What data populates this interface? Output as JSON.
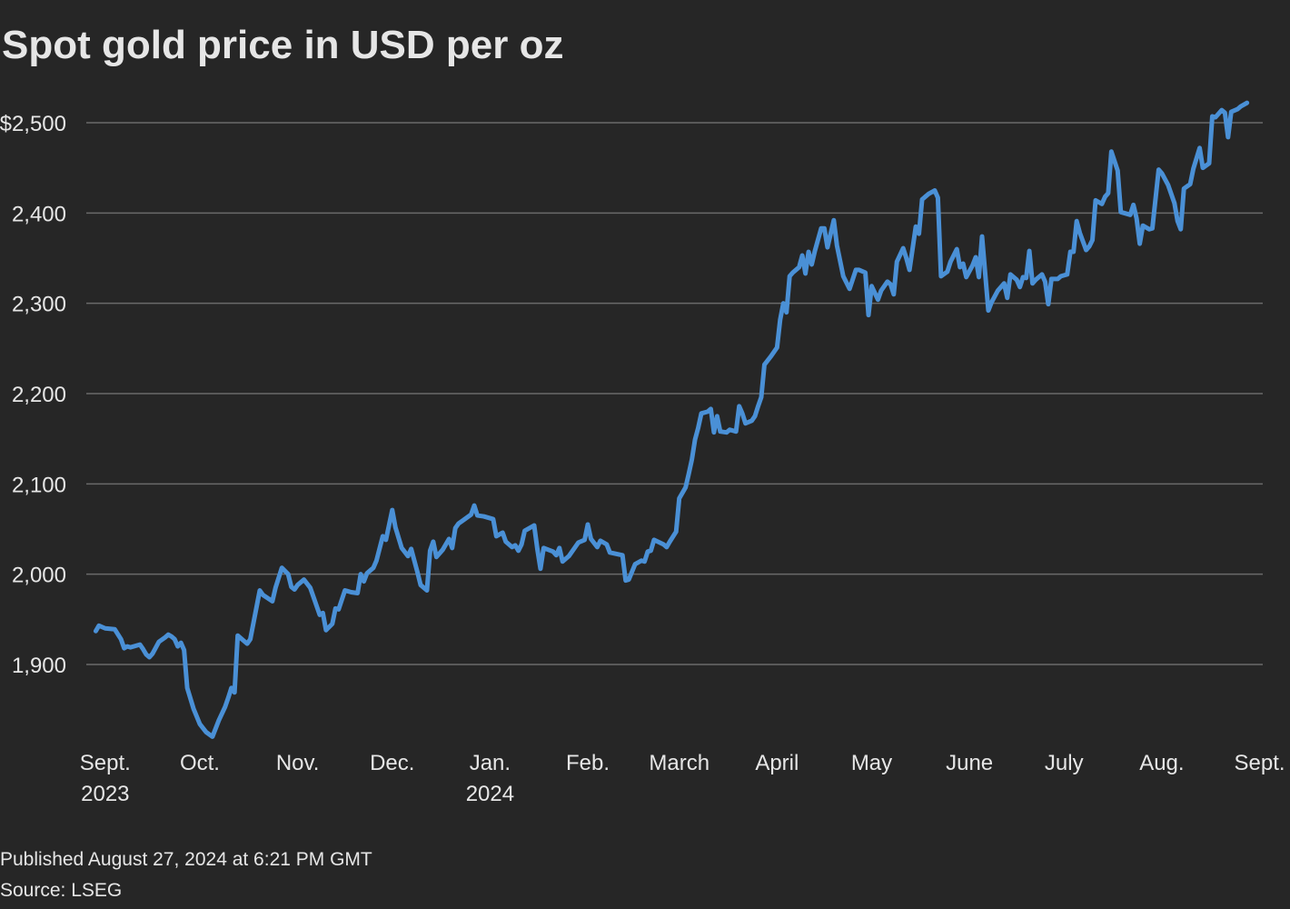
{
  "chart_data": {
    "type": "line",
    "title": "Spot gold price in USD per oz",
    "note": "Published August 27, 2024 at 6:21 PM GMT",
    "source": "Source: LSEG",
    "color": "#4a90d6",
    "grid": true,
    "xlim": [
      -6,
      367
    ],
    "ylim": [
      1815,
      2530
    ],
    "xticks": [
      {
        "value": 0,
        "label": "Sept.",
        "year": "2023"
      },
      {
        "value": 30,
        "label": "Oct."
      },
      {
        "value": 61,
        "label": "Nov."
      },
      {
        "value": 91,
        "label": "Dec."
      },
      {
        "value": 122,
        "label": "Jan.",
        "year": "2024"
      },
      {
        "value": 153,
        "label": "Feb."
      },
      {
        "value": 182,
        "label": "March"
      },
      {
        "value": 213,
        "label": "April"
      },
      {
        "value": 243,
        "label": "May"
      },
      {
        "value": 274,
        "label": "June"
      },
      {
        "value": 304,
        "label": "July"
      },
      {
        "value": 335,
        "label": "Aug."
      },
      {
        "value": 366,
        "label": "Sept."
      }
    ],
    "yticks": [
      {
        "value": 1900,
        "label": "1,900"
      },
      {
        "value": 2000,
        "label": "2,000"
      },
      {
        "value": 2100,
        "label": "2,100"
      },
      {
        "value": 2200,
        "label": "2,200"
      },
      {
        "value": 2300,
        "label": "2,300"
      },
      {
        "value": 2400,
        "label": "2,400"
      },
      {
        "value": 2500,
        "label": "$2,500"
      }
    ],
    "x": [
      -3,
      -2,
      0,
      3,
      5,
      6,
      7,
      8,
      11,
      12,
      13,
      14,
      15,
      17,
      19,
      20,
      21,
      22,
      23,
      24,
      25,
      26,
      28,
      30,
      32,
      34,
      36,
      38,
      39,
      40,
      41,
      42,
      45,
      46,
      49,
      50,
      53,
      54,
      56,
      58,
      59,
      60,
      61,
      63,
      65,
      66,
      68,
      69,
      70,
      72,
      73,
      74,
      76,
      78,
      80,
      81,
      82,
      83,
      85,
      86,
      88,
      89,
      91,
      92,
      94,
      96,
      97,
      99,
      100,
      102,
      103,
      104,
      105,
      107,
      109,
      110,
      111,
      112,
      114,
      116,
      117,
      118,
      120,
      123,
      124,
      126,
      127,
      129,
      130,
      131,
      132,
      133,
      136,
      137,
      138,
      139,
      142,
      143,
      144,
      145,
      147,
      150,
      152,
      153,
      154,
      156,
      157,
      159,
      160,
      164,
      165,
      166,
      168,
      170,
      171,
      172,
      173,
      174,
      177,
      178,
      179,
      181,
      182,
      184,
      185,
      186,
      187,
      188,
      189,
      191,
      192,
      193,
      194,
      195,
      197,
      198,
      200,
      201,
      202,
      203,
      205,
      206,
      207,
      208,
      209,
      211,
      213,
      214,
      215,
      216,
      217,
      218,
      220,
      221,
      222,
      223,
      224,
      225,
      227,
      228,
      229,
      231,
      232,
      234,
      236,
      238,
      239,
      241,
      242,
      243,
      245,
      246,
      248,
      249,
      250,
      251,
      253,
      254,
      255,
      257,
      258,
      259,
      261,
      263,
      264,
      265,
      267,
      268,
      270,
      271,
      272,
      273,
      275,
      276,
      277,
      278,
      280,
      281,
      283,
      285,
      286,
      287,
      289,
      290,
      291,
      292,
      293,
      294,
      295,
      297,
      298,
      299,
      300,
      302,
      303,
      305,
      306,
      307,
      308,
      309,
      311,
      312,
      313,
      314,
      316,
      317,
      318,
      319,
      321,
      322,
      324,
      325,
      326,
      327,
      328,
      329,
      331,
      332,
      334,
      335,
      337,
      339,
      340,
      341,
      342,
      344,
      345,
      347,
      348,
      350,
      351,
      352,
      354,
      355,
      356,
      357,
      359,
      360,
      362
    ],
    "values": [
      1937,
      1943,
      1940,
      1939,
      1928,
      1918,
      1920,
      1919,
      1922,
      1917,
      1911,
      1908,
      1912,
      1925,
      1930,
      1933,
      1931,
      1928,
      1920,
      1924,
      1916,
      1874,
      1851,
      1834,
      1825,
      1820,
      1838,
      1853,
      1863,
      1874,
      1869,
      1932,
      1923,
      1928,
      1982,
      1977,
      1970,
      1985,
      2007,
      2000,
      1986,
      1983,
      1988,
      1994,
      1985,
      1975,
      1955,
      1957,
      1938,
      1945,
      1962,
      1961,
      1982,
      1980,
      1979,
      2000,
      1992,
      2001,
      2007,
      2015,
      2042,
      2038,
      2071,
      2052,
      2029,
      2020,
      2028,
      2002,
      1988,
      1982,
      2026,
      2036,
      2019,
      2027,
      2039,
      2029,
      2051,
      2056,
      2061,
      2066,
      2076,
      2065,
      2064,
      2061,
      2042,
      2046,
      2036,
      2030,
      2032,
      2026,
      2033,
      2048,
      2054,
      2028,
      2006,
      2029,
      2025,
      2021,
      2029,
      2014,
      2020,
      2035,
      2038,
      2055,
      2039,
      2030,
      2037,
      2033,
      2024,
      2021,
      1993,
      1994,
      2011,
      2015,
      2014,
      2025,
      2026,
      2038,
      2033,
      2030,
      2036,
      2047,
      2084,
      2096,
      2111,
      2127,
      2149,
      2162,
      2178,
      2180,
      2183,
      2157,
      2175,
      2158,
      2157,
      2160,
      2158,
      2186,
      2178,
      2167,
      2170,
      2175,
      2186,
      2196,
      2232,
      2241,
      2251,
      2282,
      2300,
      2290,
      2330,
      2334,
      2340,
      2353,
      2333,
      2357,
      2343,
      2358,
      2383,
      2383,
      2362,
      2392,
      2364,
      2330,
      2316,
      2337,
      2337,
      2334,
      2287,
      2319,
      2304,
      2314,
      2324,
      2321,
      2310,
      2346,
      2361,
      2350,
      2337,
      2385,
      2377,
      2415,
      2421,
      2425,
      2417,
      2330,
      2335,
      2346,
      2360,
      2340,
      2344,
      2329,
      2342,
      2351,
      2329,
      2374,
      2292,
      2301,
      2314,
      2322,
      2306,
      2332,
      2326,
      2318,
      2329,
      2328,
      2358,
      2322,
      2326,
      2332,
      2324,
      2299,
      2327,
      2327,
      2330,
      2332,
      2357,
      2357,
      2391,
      2378,
      2359,
      2363,
      2370,
      2414,
      2410,
      2418,
      2422,
      2468,
      2447,
      2401,
      2399,
      2398,
      2409,
      2394,
      2366,
      2386,
      2382,
      2383,
      2448,
      2444,
      2431,
      2411,
      2391,
      2382,
      2427,
      2432,
      2449,
      2472,
      2450,
      2455,
      2507,
      2506,
      2514,
      2511,
      2484,
      2512,
      2515,
      2518,
      2522
    ]
  }
}
